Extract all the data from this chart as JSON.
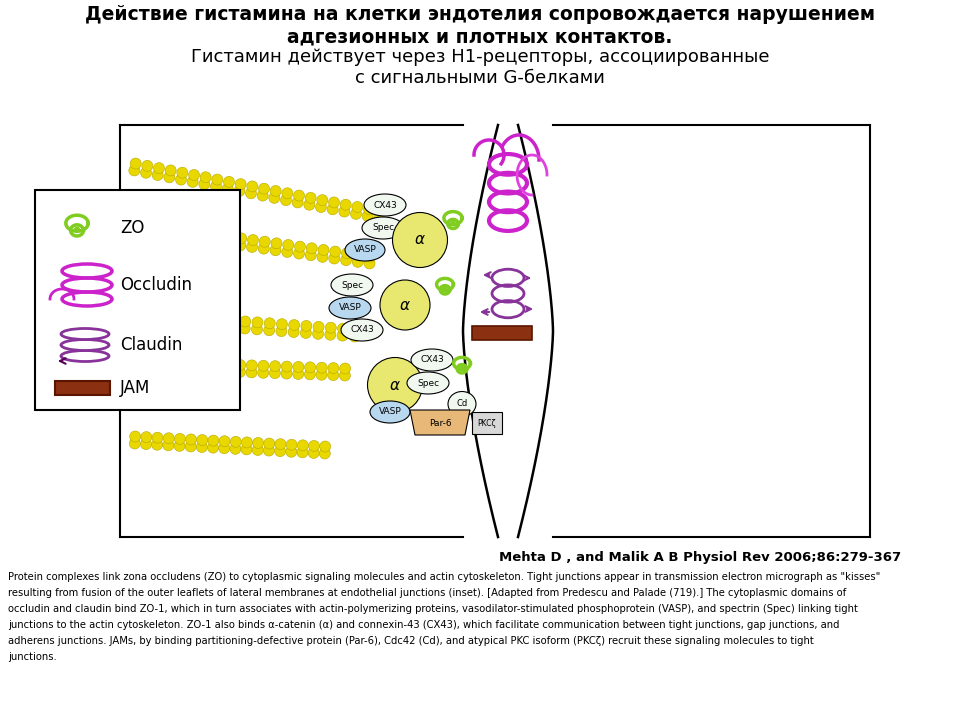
{
  "title_bold": "Действие гистамина на клетки эндотелия сопровождается нарушением\nадгезионных и плотных контактов.",
  "title_normal": "Гистамин действует через H1-рецепторы, ассоциированные\nс сигнальными G-белками",
  "reference": "Mehta D , and Malik A B Physiol Rev 2006;86:279-367",
  "caption_line1": "Protein complexes link zona occludens (ZO) to cytoplasmic signaling molecules and actin cytoskeleton. Tight junctions appear in transmission electron micrograph as \"kisses\"",
  "caption_line2": "resulting from fusion of the outer leaflets of lateral membranes at endothelial junctions (inset). [Adapted from Predescu and Palade (719).] The cytoplasmic domains of",
  "caption_line3": "occludin and claudin bind ZO-1, which in turn associates with actin-polymerizing proteins, vasodilator-stimulated phosphoprotein (VASP), and spectrin (Spec) linking tight",
  "caption_line4": "junctions to the actin cytoskeleton. ZO-1 also binds α-catenin (α) and connexin-43 (CX43), which facilitate communication between tight junctions, gap junctions, and",
  "caption_line5": "adherens junctions. JAMs, by binding partitioning-defective protein (Par-6), Cdc42 (Cd), and atypical PKC isoform (PKCζ) recruit these signaling molecules to tight",
  "caption_line6": "junctions.",
  "bg_color": "#ffffff"
}
